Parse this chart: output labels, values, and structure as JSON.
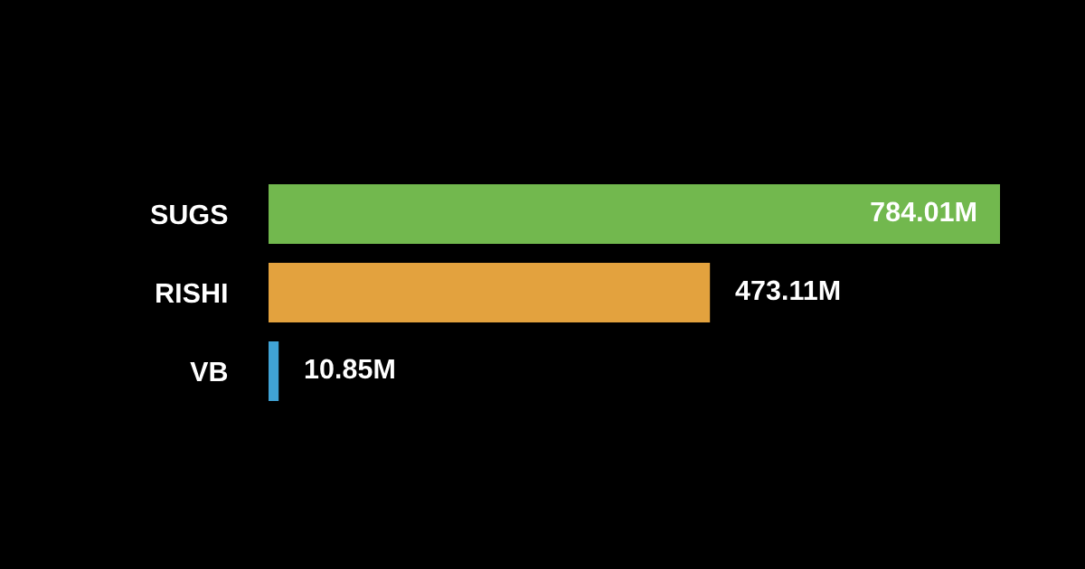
{
  "chart_data": {
    "type": "bar",
    "orientation": "horizontal",
    "categories": [
      "SUGS",
      "RISHI",
      "VB"
    ],
    "values": [
      784.01,
      473.11,
      10.85
    ],
    "colors": [
      "#72b84e",
      "#e3a23e",
      "#40a4d6"
    ],
    "value_labels": [
      "784.01M",
      "473.11M",
      "10.85M"
    ],
    "tick_labels": "y",
    "grid": false
  }
}
